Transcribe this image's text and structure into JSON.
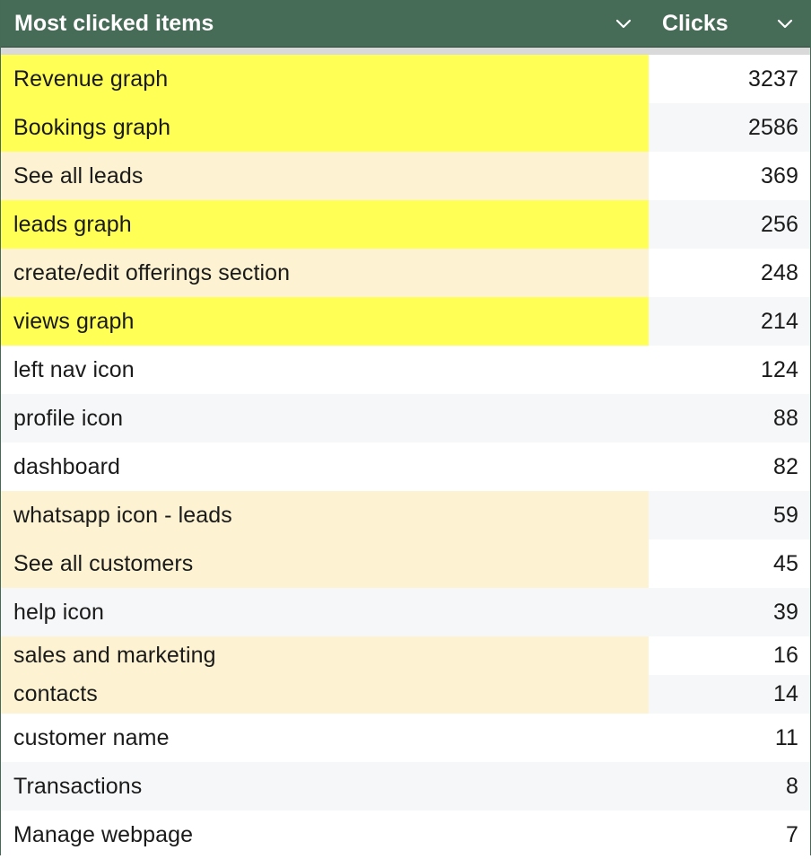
{
  "header": {
    "item_label": "Most clicked items",
    "clicks_label": "Clicks",
    "item_sort_icon": "chevron-down-icon",
    "clicks_sort_icon": "chevron-down-icon"
  },
  "colors": {
    "header_bg": "#466b57",
    "highlight_yellow": "#ffff55",
    "highlight_cream": "#fdf2d1",
    "row_alt_grey": "#f6f7f9"
  },
  "rows": [
    {
      "item": "Revenue graph",
      "clicks": "3237",
      "item_bg": "yellow",
      "clicks_bg": "white"
    },
    {
      "item": "Bookings graph",
      "clicks": "2586",
      "item_bg": "yellow",
      "clicks_bg": "grey"
    },
    {
      "item": "See all leads",
      "clicks": "369",
      "item_bg": "cream",
      "clicks_bg": "white"
    },
    {
      "item": "leads graph",
      "clicks": "256",
      "item_bg": "yellow",
      "clicks_bg": "grey"
    },
    {
      "item": "create/edit offerings section",
      "clicks": "248",
      "item_bg": "cream",
      "clicks_bg": "white"
    },
    {
      "item": "views graph",
      "clicks": "214",
      "item_bg": "yellow",
      "clicks_bg": "grey"
    },
    {
      "item": "left nav icon",
      "clicks": "124",
      "item_bg": "white",
      "clicks_bg": "white"
    },
    {
      "item": "profile icon",
      "clicks": "88",
      "item_bg": "grey",
      "clicks_bg": "grey"
    },
    {
      "item": "dashboard",
      "clicks": "82",
      "item_bg": "white",
      "clicks_bg": "white"
    },
    {
      "item": "whatsapp icon - leads",
      "clicks": "59",
      "item_bg": "cream",
      "clicks_bg": "grey"
    },
    {
      "item": "See all customers",
      "clicks": "45",
      "item_bg": "cream",
      "clicks_bg": "white"
    },
    {
      "item": "help icon",
      "clicks": "39",
      "item_bg": "grey",
      "clicks_bg": "grey"
    },
    {
      "item": "sales and marketing",
      "clicks": "16",
      "item_bg": "cream",
      "clicks_bg": "white"
    },
    {
      "item": "contacts",
      "clicks": "14",
      "item_bg": "cream",
      "clicks_bg": "grey"
    },
    {
      "item": "customer name",
      "clicks": "11",
      "item_bg": "white",
      "clicks_bg": "white"
    },
    {
      "item": "Transactions",
      "clicks": "8",
      "item_bg": "grey",
      "clicks_bg": "grey"
    },
    {
      "item": "Manage webpage",
      "clicks": "7",
      "item_bg": "white",
      "clicks_bg": "white"
    }
  ]
}
